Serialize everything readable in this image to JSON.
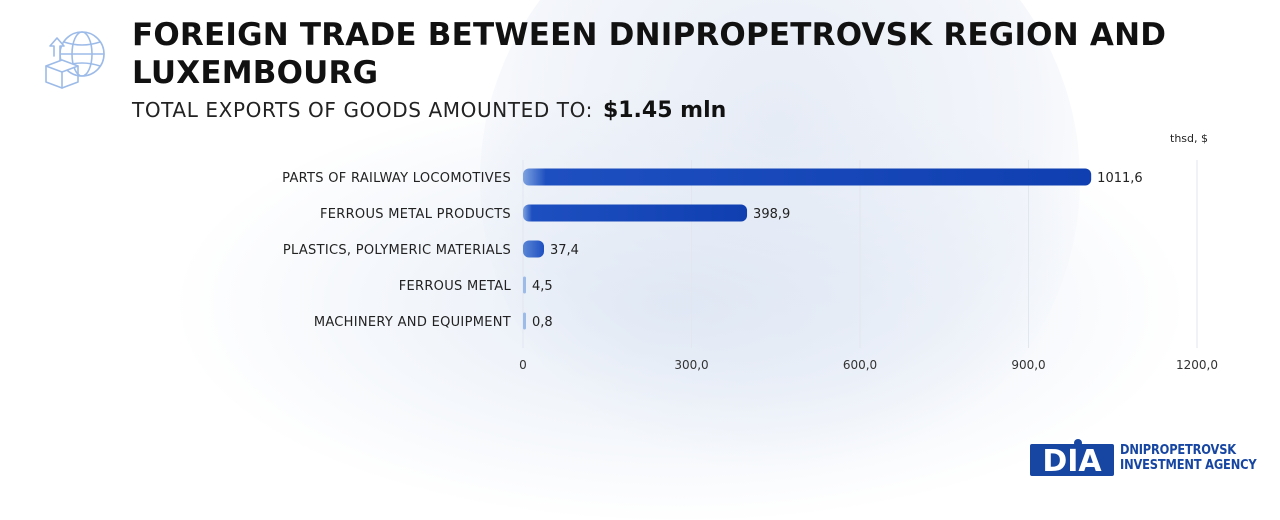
{
  "header": {
    "title": "FOREIGN TRADE BETWEEN DNIPROPETROVSK REGION AND LUXEMBOURG",
    "subtitle_label": "TOTAL EXPORTS OF GOODS AMOUNTED TO:",
    "subtitle_value": "$1.45  mln",
    "icon": "globe-export-icon"
  },
  "chart_data": {
    "type": "bar",
    "orientation": "horizontal",
    "title": "FOREIGN TRADE BETWEEN DNIPROPETROVSK REGION AND LUXEMBOURG",
    "unit": "thsd, $",
    "categories": [
      "PARTS OF RAILWAY LOCOMOTIVES",
      "FERROUS METAL PRODUCTS",
      "PLASTICS, POLYMERIC MATERIALS",
      "FERROUS METAL",
      "MACHINERY AND EQUIPMENT"
    ],
    "values": [
      1011.6,
      398.9,
      37.4,
      4.5,
      0.8
    ],
    "value_labels": [
      "1011,6",
      "398,9",
      "37,4",
      "4,5",
      "0,8"
    ],
    "xlim": [
      0,
      1200
    ],
    "ticks": [
      0,
      300,
      600,
      900,
      1200
    ],
    "tick_labels": [
      "0",
      "300,0",
      "600,0",
      "900,0",
      "1200,0"
    ],
    "grid": true,
    "legend": "none",
    "colors": {
      "bar": "#0f3fb0",
      "bar_light": "#9dbbe8",
      "grid": "#e2e6ee"
    }
  },
  "logo": {
    "mark": "DIA",
    "line1": "DNIPROPETROVSK",
    "line2": "INVESTMENT AGENCY",
    "color": "#1746a2"
  }
}
